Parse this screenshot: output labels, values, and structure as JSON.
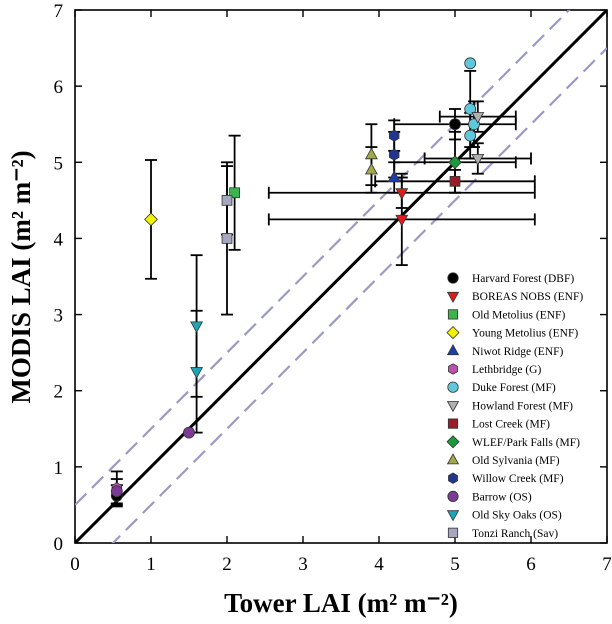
{
  "chart_data": {
    "type": "scatter",
    "title": "",
    "xlabel": "Tower LAI (m² m⁻²)",
    "ylabel": "MODIS LAI (m² m⁻²)",
    "xlim": [
      0,
      7
    ],
    "ylim": [
      0,
      7
    ],
    "xticks": [
      "0",
      "1",
      "2",
      "3",
      "4",
      "5",
      "6",
      "7"
    ],
    "yticks": [
      "0",
      "1",
      "2",
      "3",
      "4",
      "5",
      "6",
      "7"
    ],
    "grid": false,
    "legend_position": "bottom-right",
    "reference_lines": [
      {
        "kind": "one-to-one",
        "style": "solid",
        "color": "#000000"
      },
      {
        "kind": "one-to-one plus 0.5",
        "style": "dashed",
        "color": "#9a9ac4"
      },
      {
        "kind": "one-to-one minus 0.5",
        "style": "dashed",
        "color": "#9a9ac4"
      }
    ],
    "series": [
      {
        "name": "Harvard Forest (DBF)",
        "marker": "circle",
        "color": "#000000",
        "points": [
          {
            "x": 5.0,
            "y": 5.5,
            "xerr": 0.8,
            "yerr": 0.2
          },
          {
            "x": 0.55,
            "y": 0.62,
            "xerr": 0,
            "yerr": 0.14
          }
        ]
      },
      {
        "name": "BOREAS NOBS (ENF)",
        "marker": "triangle-down",
        "color": "#e31a1c",
        "points": [
          {
            "x": 4.3,
            "y": 4.6,
            "xerr": 1.75,
            "yerr": 0.2
          },
          {
            "x": 4.3,
            "y": 4.25,
            "xerr": 1.75,
            "yerr": 0.6
          }
        ]
      },
      {
        "name": "Old Metolius (ENF)",
        "marker": "square",
        "color": "#3cb44b",
        "points": [
          {
            "x": 2.1,
            "y": 4.6,
            "xerr": 0,
            "yerr": 0.75
          }
        ]
      },
      {
        "name": "Young Metolius (ENF)",
        "marker": "diamond",
        "color": "#f2f200",
        "points": [
          {
            "x": 1.0,
            "y": 4.25,
            "xerr": 0,
            "yerr": 0.78
          }
        ]
      },
      {
        "name": "Niwot Ridge (ENF)",
        "marker": "triangle-up",
        "color": "#1f3da8",
        "points": [
          {
            "x": 4.2,
            "y": 4.8,
            "xerr": 0,
            "yerr": 0.2
          }
        ]
      },
      {
        "name": "Lethbridge (G)",
        "marker": "hexagon",
        "color": "#c050b0",
        "points": [
          {
            "x": 0.55,
            "y": 0.72,
            "xerr": 0,
            "yerr": 0.22
          }
        ]
      },
      {
        "name": "Duke Forest (MF)",
        "marker": "circle",
        "color": "#5fc8dd",
        "points": [
          {
            "x": 5.2,
            "y": 6.3,
            "xerr": 0,
            "yerr": 0
          },
          {
            "x": 5.2,
            "y": 5.7,
            "xerr": 0,
            "yerr": 0.5
          },
          {
            "x": 5.25,
            "y": 5.5,
            "xerr": 0,
            "yerr": 0.3
          },
          {
            "x": 5.2,
            "y": 5.35,
            "xerr": 0,
            "yerr": 0.3
          }
        ]
      },
      {
        "name": "Howland Forest (MF)",
        "marker": "triangle-down",
        "color": "#b0b0b0",
        "points": [
          {
            "x": 5.3,
            "y": 5.6,
            "xerr": 0.5,
            "yerr": 0.2
          },
          {
            "x": 5.3,
            "y": 5.05,
            "xerr": 0.7,
            "yerr": 0.2
          }
        ]
      },
      {
        "name": "Lost Creek (MF)",
        "marker": "square",
        "color": "#9b1c2c",
        "points": [
          {
            "x": 5.0,
            "y": 4.75,
            "xerr": 1.05,
            "yerr": 0.15
          }
        ]
      },
      {
        "name": "WLEF/Park Falls (MF)",
        "marker": "diamond",
        "color": "#1a9a3a",
        "points": [
          {
            "x": 5.0,
            "y": 5.0,
            "xerr": 0.8,
            "yerr": 0.4
          }
        ]
      },
      {
        "name": "Old Sylvania (MF)",
        "marker": "triangle-up",
        "color": "#a3a84a",
        "points": [
          {
            "x": 3.9,
            "y": 5.1,
            "xerr": 0,
            "yerr": 0.4
          },
          {
            "x": 3.9,
            "y": 4.9,
            "xerr": 0,
            "yerr": 0.3
          }
        ]
      },
      {
        "name": "Willow Creek (MF)",
        "marker": "hexagon",
        "color": "#22368f",
        "points": [
          {
            "x": 4.2,
            "y": 5.35,
            "xerr": 0,
            "yerr": 0.2
          },
          {
            "x": 4.2,
            "y": 5.1,
            "xerr": 0,
            "yerr": 0.3
          }
        ]
      },
      {
        "name": "Barrow (OS)",
        "marker": "circle",
        "color": "#7b3a96",
        "points": [
          {
            "x": 1.5,
            "y": 1.45,
            "xerr": 0,
            "yerr": 0
          },
          {
            "x": 0.55,
            "y": 0.68,
            "xerr": 0,
            "yerr": 0.16
          }
        ]
      },
      {
        "name": "Old Sky Oaks (OS)",
        "marker": "triangle-down",
        "color": "#1aa6b7",
        "points": [
          {
            "x": 1.6,
            "y": 2.85,
            "xerr": 0,
            "yerr": 0.93
          },
          {
            "x": 1.6,
            "y": 2.25,
            "xerr": 0,
            "yerr": 0.8
          }
        ]
      },
      {
        "name": "Tonzi Ranch (Sav)",
        "marker": "square",
        "color": "#a6a6be",
        "points": [
          {
            "x": 2.0,
            "y": 4.5,
            "xerr": 0,
            "yerr": 0.45
          },
          {
            "x": 2.0,
            "y": 4.0,
            "xerr": 0,
            "yerr": 1.0
          }
        ]
      }
    ]
  }
}
